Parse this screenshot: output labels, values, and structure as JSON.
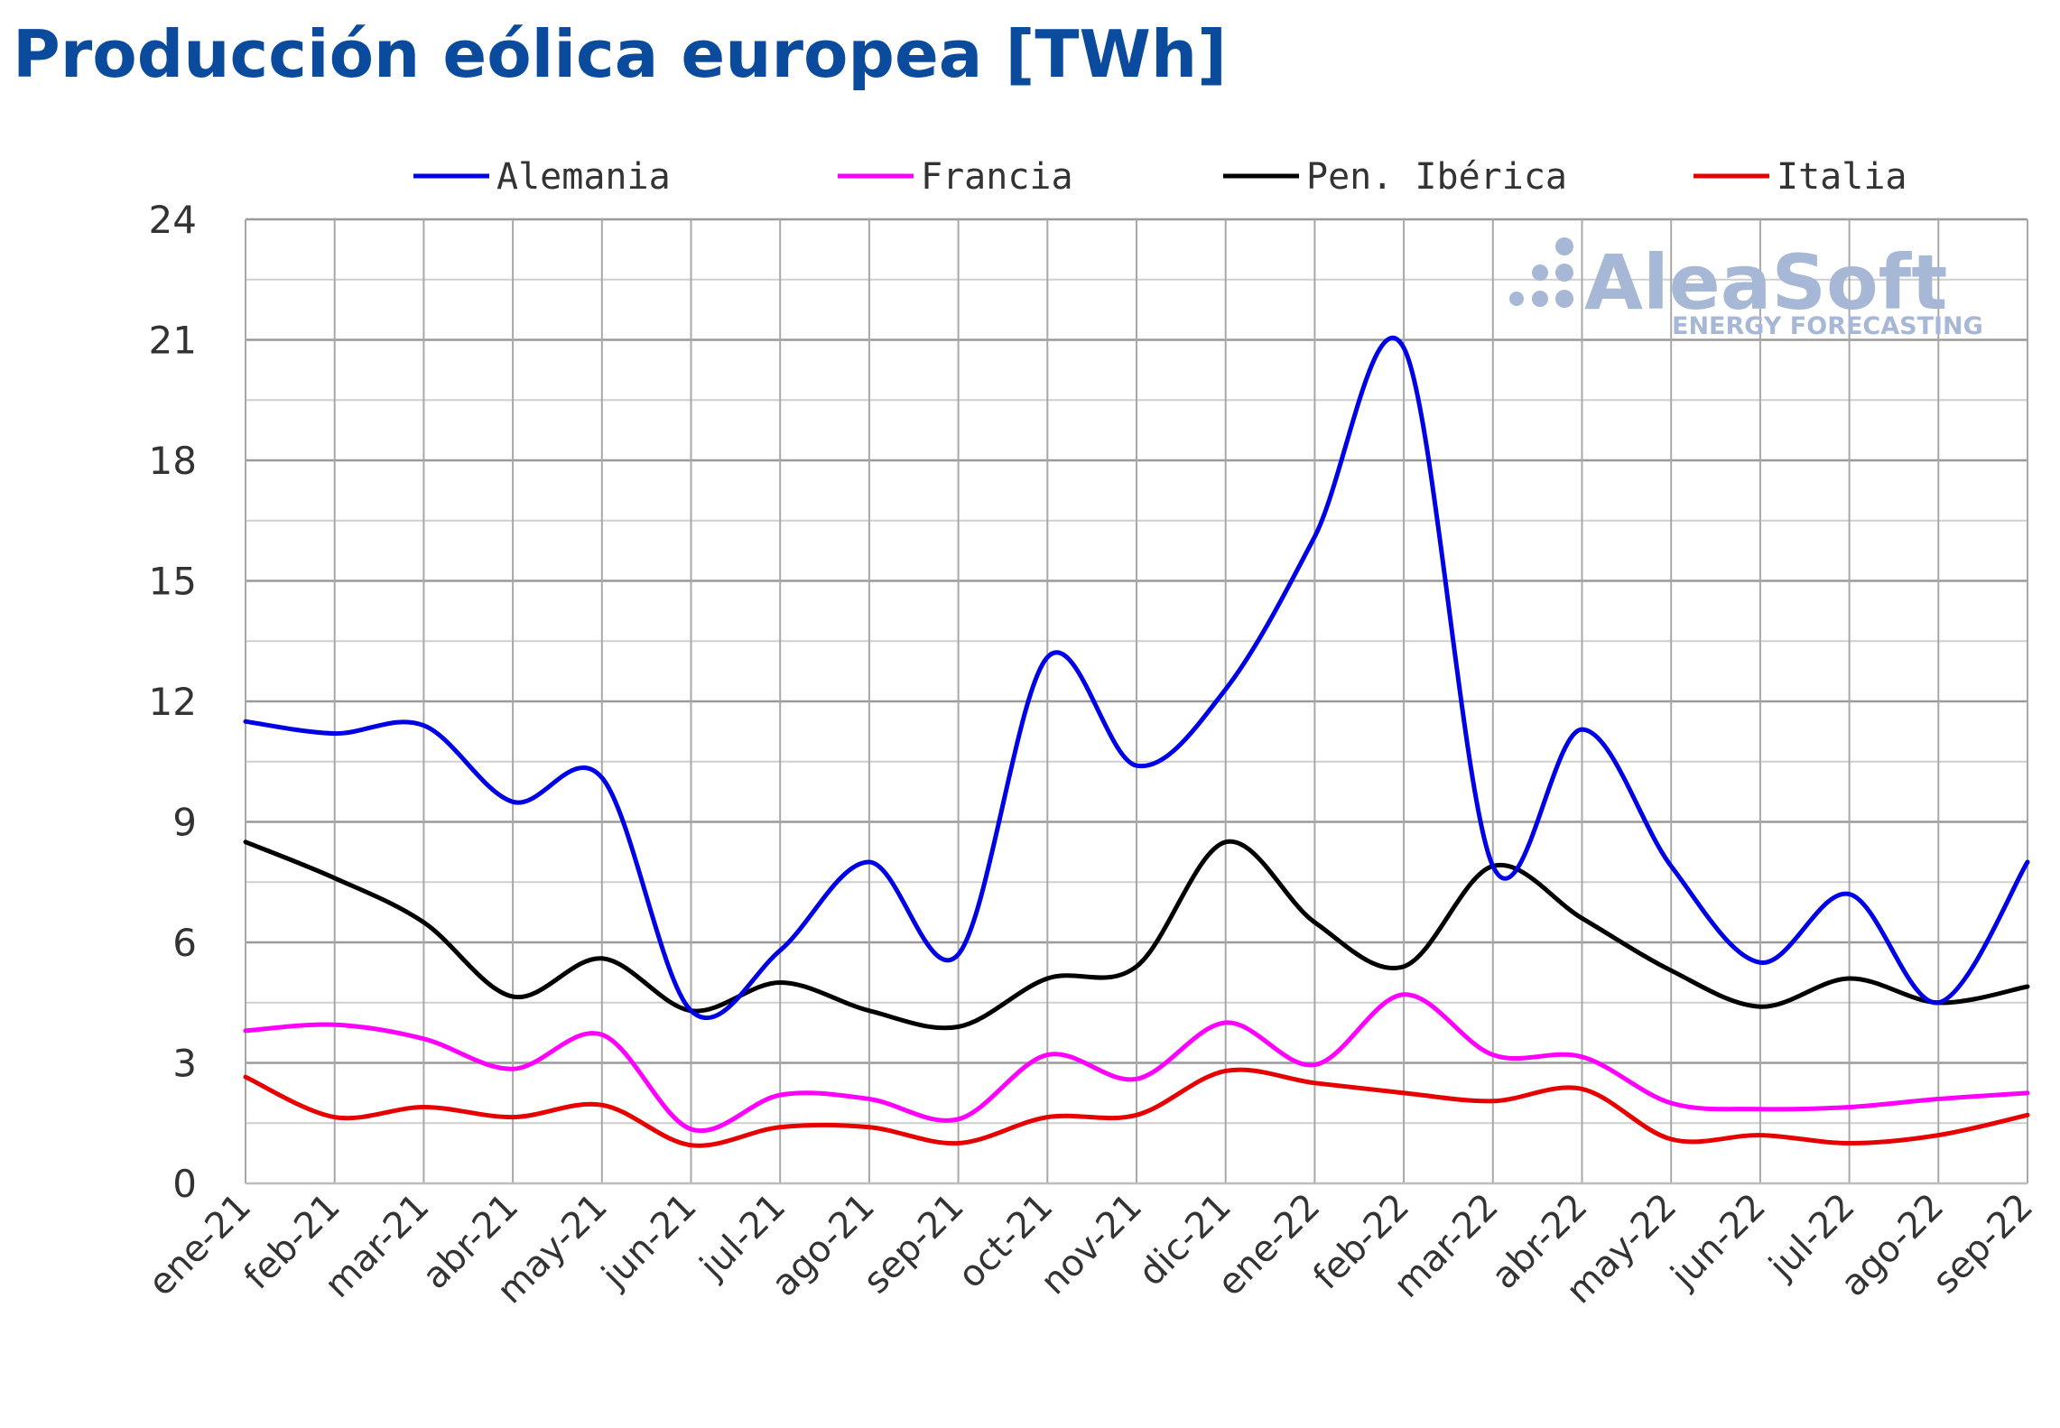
{
  "chart_data": {
    "type": "line",
    "title": "Producción eólica europea [TWh]",
    "xlabel": "",
    "ylabel": "",
    "ylim": [
      0,
      24
    ],
    "yticks": [
      0,
      3,
      6,
      9,
      12,
      15,
      18,
      21,
      24
    ],
    "grid": true,
    "legend_position": "top",
    "categories": [
      "ene-21",
      "feb-21",
      "mar-21",
      "abr-21",
      "may-21",
      "jun-21",
      "jul-21",
      "ago-21",
      "sep-21",
      "oct-21",
      "nov-21",
      "dic-21",
      "ene-22",
      "feb-22",
      "mar-22",
      "abr-22",
      "may-22",
      "jun-22",
      "jul-22",
      "ago-22",
      "sep-22"
    ],
    "series": [
      {
        "name": "Alemania",
        "color": "#0000e6",
        "values": [
          11.5,
          11.2,
          11.4,
          9.5,
          10.1,
          4.3,
          5.8,
          8.0,
          5.7,
          13.1,
          10.4,
          12.3,
          16.1,
          20.8,
          7.9,
          11.3,
          7.9,
          5.5,
          7.2,
          4.5,
          8.0
        ]
      },
      {
        "name": "Francia",
        "color": "#ff00ff",
        "values": [
          3.8,
          3.95,
          3.6,
          2.85,
          3.7,
          1.35,
          2.2,
          2.1,
          1.6,
          3.2,
          2.6,
          4.0,
          2.95,
          4.7,
          3.2,
          3.15,
          2.0,
          1.85,
          1.9,
          2.1,
          2.25
        ]
      },
      {
        "name": "Pen. Ibérica",
        "color": "#000000",
        "values": [
          8.5,
          7.6,
          6.5,
          4.65,
          5.6,
          4.3,
          5.0,
          4.3,
          3.9,
          5.1,
          5.4,
          8.5,
          6.5,
          5.4,
          7.9,
          6.6,
          5.3,
          4.4,
          5.1,
          4.5,
          4.9
        ]
      },
      {
        "name": "Italia",
        "color": "#e60000",
        "values": [
          2.65,
          1.65,
          1.9,
          1.65,
          1.95,
          0.95,
          1.4,
          1.4,
          1.0,
          1.65,
          1.7,
          2.8,
          2.5,
          2.25,
          2.05,
          2.35,
          1.1,
          1.2,
          1.0,
          1.2,
          1.7
        ]
      }
    ]
  },
  "watermark": {
    "brand": "AleaSoft",
    "tagline": "ENERGY FORECASTING",
    "color": "#a7b8d6"
  }
}
